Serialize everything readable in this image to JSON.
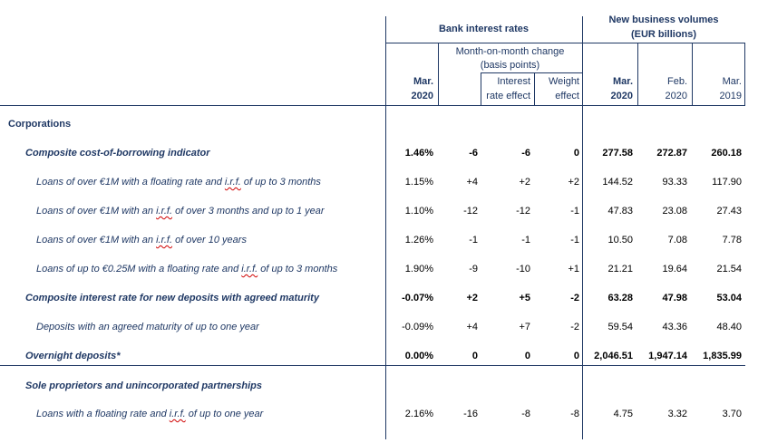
{
  "header": {
    "bank_rates": "Bank interest rates",
    "volumes_line1": "New business volumes",
    "volumes_line2": "(EUR billions)",
    "mom_line1": "Month-on-month change",
    "mom_line2": "(basis points)",
    "ir_effect_line1": "Interest",
    "ir_effect_line2": "rate effect",
    "w_effect_line1": "Weight",
    "w_effect_line2": "effect",
    "col_rate_line1": "Mar.",
    "col_rate_line2": "2020",
    "col_v1_line1": "Mar.",
    "col_v1_line2": "2020",
    "col_v2_line1": "Feb.",
    "col_v2_line2": "2020",
    "col_v3_line1": "Mar.",
    "col_v3_line2": "2019"
  },
  "sections": {
    "corporations": "Corporations"
  },
  "rows": [
    {
      "label": "Composite cost-of-borrowing indicator",
      "rate": "1.46%",
      "mom": "-6",
      "ire": "-6",
      "we": "0",
      "v1": "277.58",
      "v2": "272.87",
      "v3": "260.18"
    },
    {
      "pre": "Loans of over €1M with a floating rate and ",
      "sq": "i.r.f.",
      "post": " of up to 3 months",
      "rate": "1.15%",
      "mom": "+4",
      "ire": "+2",
      "we": "+2",
      "v1": "144.52",
      "v2": "93.33",
      "v3": "117.90"
    },
    {
      "pre": "Loans of over €1M with an ",
      "sq": "i.r.f.",
      "post": " of over 3 months and up to 1 year",
      "rate": "1.10%",
      "mom": "-12",
      "ire": "-12",
      "we": "-1",
      "v1": "47.83",
      "v2": "23.08",
      "v3": "27.43"
    },
    {
      "pre": "Loans of over €1M with an ",
      "sq": "i.r.f.",
      "post": " of over 10 years",
      "rate": "1.26%",
      "mom": "-1",
      "ire": "-1",
      "we": "-1",
      "v1": "10.50",
      "v2": "7.08",
      "v3": "7.78"
    },
    {
      "pre": "Loans of up to €0.25M with a floating rate and ",
      "sq": "i.r.f.",
      "post": " of up to 3 months",
      "rate": "1.90%",
      "mom": "-9",
      "ire": "-10",
      "we": "+1",
      "v1": "21.21",
      "v2": "19.64",
      "v3": "21.54"
    },
    {
      "label": "Composite interest rate for new deposits with agreed maturity",
      "rate": "-0.07%",
      "mom": "+2",
      "ire": "+5",
      "we": "-2",
      "v1": "63.28",
      "v2": "47.98",
      "v3": "53.04"
    },
    {
      "label": "Deposits with an agreed maturity of up to one year",
      "rate": "-0.09%",
      "mom": "+4",
      "ire": "+7",
      "we": "-2",
      "v1": "59.54",
      "v2": "43.36",
      "v3": "48.40"
    },
    {
      "label": "Overnight deposits*",
      "rate": "0.00%",
      "mom": "0",
      "ire": "0",
      "we": "0",
      "v1": "2,046.51",
      "v2": "1,947.14",
      "v3": "1,835.99"
    },
    {
      "label": "Sole proprietors and unincorporated partnerships"
    },
    {
      "pre": "Loans with a floating rate and ",
      "sq": "i.r.f.",
      "post": " of up to one year",
      "rate": "2.16%",
      "mom": "-16",
      "ire": "-8",
      "we": "-8",
      "v1": "4.75",
      "v2": "3.32",
      "v3": "3.70"
    }
  ]
}
